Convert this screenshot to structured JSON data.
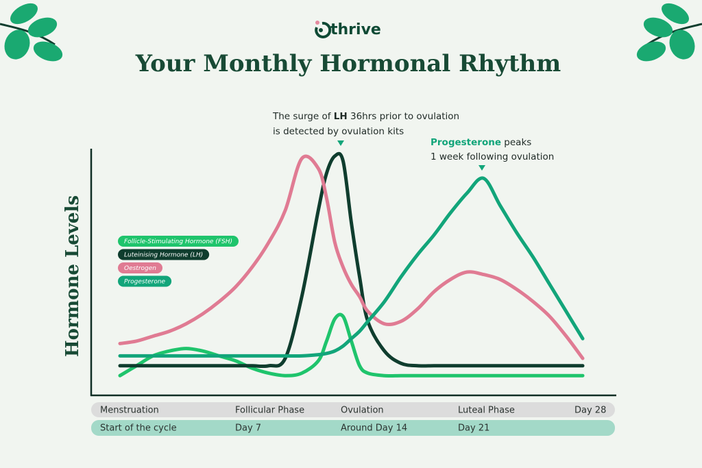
{
  "brand": "thrive",
  "chart_data": {
    "type": "line",
    "title": "Your Monthly Hormonal Rhythm",
    "ylabel": "Hormone Levels",
    "annotations": [
      {
        "line1": [
          "The surge of",
          "LH",
          "36hrs prior to ovulation"
        ],
        "line2": "is detected by ovulation kits"
      },
      {
        "line1": [
          "Progesterone",
          "peaks"
        ],
        "line2": "1 week following ovulation"
      }
    ],
    "phases": [
      "Menstruation",
      "Follicular Phase",
      "Ovulation",
      "Luteal Phase",
      "Day 28"
    ],
    "days": [
      "Start of the cycle",
      "Day 7",
      "Around Day 14",
      "Day 21"
    ],
    "xlim": [
      0,
      28
    ],
    "ylim": [
      0,
      100
    ],
    "x": [
      0,
      1,
      2,
      3,
      4,
      5,
      6,
      7,
      8,
      9,
      10,
      11,
      12,
      12.5,
      13,
      13.5,
      14,
      14.5,
      15,
      16,
      17,
      18,
      19,
      20,
      21,
      22,
      23,
      24,
      25,
      26,
      27,
      28
    ],
    "series": [
      {
        "name": "Follicle-Stimulating Hormone (FSH)",
        "color": "#1fc46c",
        "values": [
          8,
          12,
          16,
          18,
          19,
          18,
          16,
          14,
          11,
          9,
          8,
          9,
          14,
          22,
          31,
          32,
          22,
          12,
          9,
          8,
          8,
          8,
          8,
          8,
          8,
          8,
          8,
          8,
          8,
          8,
          8,
          8
        ]
      },
      {
        "name": "Luteinising Hormone (LH)",
        "color": "#0f3d2e",
        "values": [
          12,
          12,
          12,
          12,
          12,
          12,
          12,
          12,
          12,
          12,
          15,
          40,
          75,
          90,
          97,
          95,
          70,
          48,
          30,
          18,
          13,
          12,
          12,
          12,
          12,
          12,
          12,
          12,
          12,
          12,
          12,
          12
        ]
      },
      {
        "name": "Oestrogen",
        "color": "#e07b93",
        "values": [
          21,
          22,
          24,
          26,
          29,
          33,
          38,
          44,
          52,
          62,
          75,
          96,
          92,
          80,
          62,
          52,
          45,
          40,
          34,
          29,
          30,
          35,
          42,
          47,
          50,
          49,
          47,
          43,
          38,
          32,
          24,
          15
        ]
      },
      {
        "name": "Progesterone",
        "color": "#12a57a",
        "values": [
          16,
          16,
          16,
          16,
          16,
          16,
          16,
          16,
          16,
          16,
          16,
          16,
          16.5,
          17,
          18,
          20,
          23,
          26,
          30,
          38,
          48,
          57,
          65,
          74,
          82,
          88,
          77,
          66,
          56,
          45,
          34,
          23
        ]
      }
    ]
  }
}
